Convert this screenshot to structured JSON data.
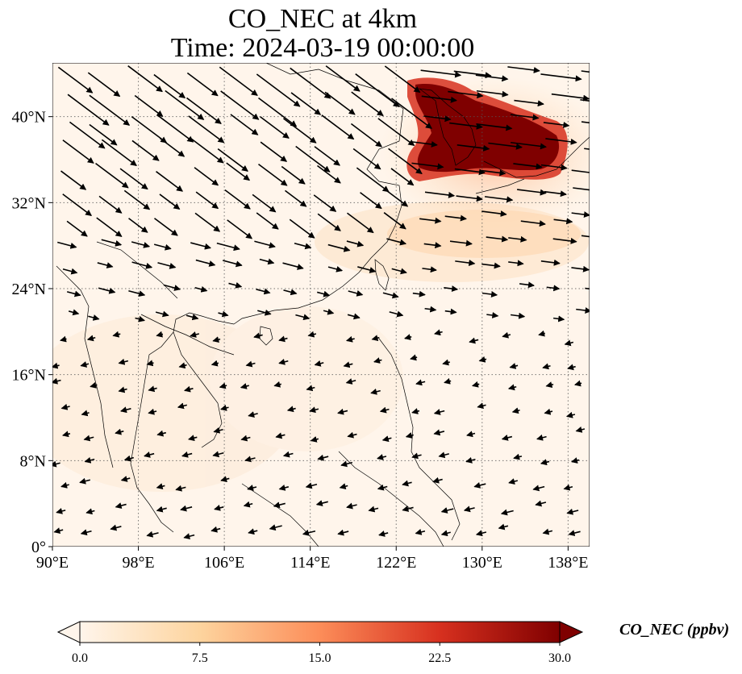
{
  "title": {
    "line1": "CO_NEC at 4km",
    "line2": "Time: 2024-03-19 00:00:00"
  },
  "map": {
    "extent": {
      "lon_min": 90,
      "lon_max": 140,
      "lat_min": 0,
      "lat_max": 45
    },
    "x_ticks": [
      {
        "value": 90,
        "label": "90°E"
      },
      {
        "value": 98,
        "label": "98°E"
      },
      {
        "value": 106,
        "label": "106°E"
      },
      {
        "value": 114,
        "label": "114°E"
      },
      {
        "value": 122,
        "label": "122°E"
      },
      {
        "value": 130,
        "label": "130°E"
      },
      {
        "value": 138,
        "label": "138°E"
      }
    ],
    "y_ticks": [
      {
        "value": 0,
        "label": "0°"
      },
      {
        "value": 8,
        "label": "8°N"
      },
      {
        "value": 16,
        "label": "16°N"
      },
      {
        "value": 24,
        "label": "24°N"
      },
      {
        "value": 32,
        "label": "32°N"
      },
      {
        "value": 40,
        "label": "40°N"
      }
    ],
    "gridlines": "dotted",
    "background_color": "#fff5eb",
    "high_concentration_region": "Korea / Yellow Sea / Sea of Japan",
    "vector_field": "wind arrows"
  },
  "colorbar": {
    "label": "CO_NEC (ppbv)",
    "colormap": "OrRd",
    "colors": [
      "#fff5eb",
      "#fdd49e",
      "#fc8d59",
      "#d7301f",
      "#7f0000"
    ],
    "ticks": [
      "0.0",
      "7.5",
      "15.0",
      "22.5",
      "30.0"
    ],
    "range": [
      0,
      30
    ],
    "extend": "both"
  }
}
